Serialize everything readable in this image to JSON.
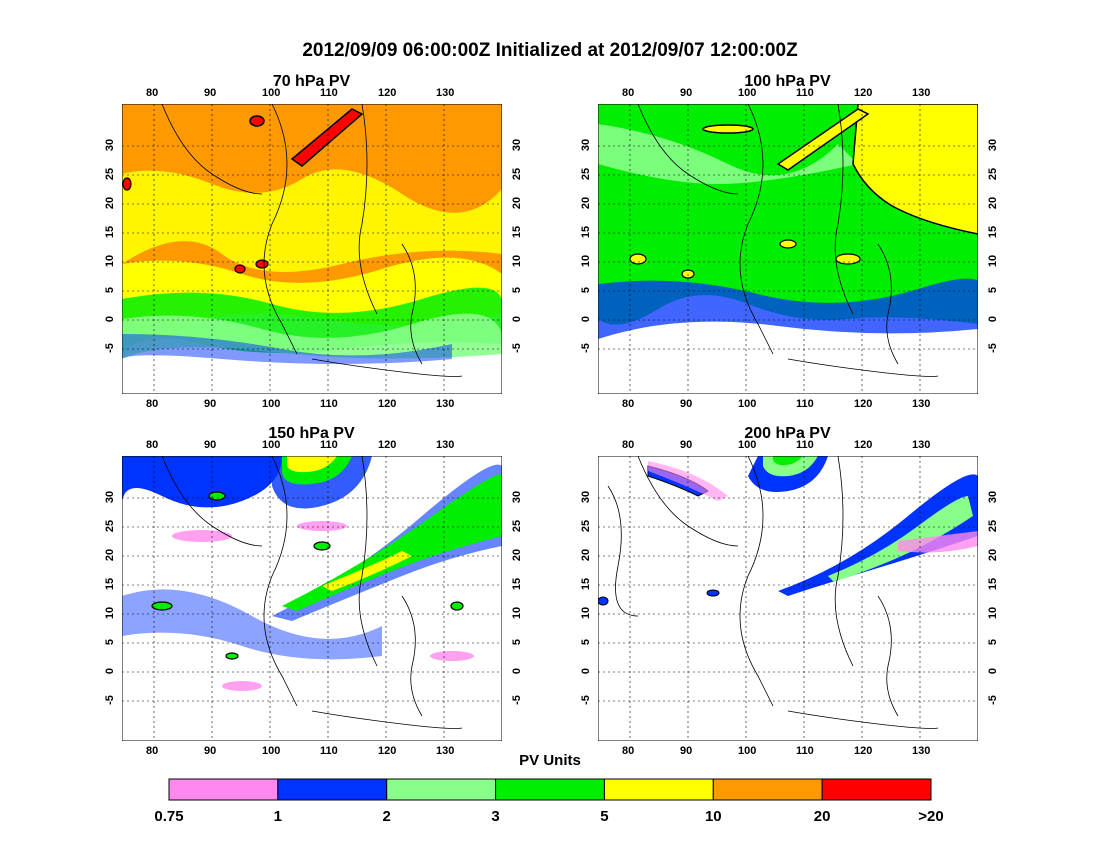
{
  "title": "2012/09/09 06:00:00Z Initialized at 2012/09/07 12:00:00Z",
  "panels": [
    {
      "title": "70 hPa PV"
    },
    {
      "title": "100 hPa PV"
    },
    {
      "title": "150 hPa PV"
    },
    {
      "title": "200 hPa PV"
    }
  ],
  "lon_ticks": [
    "80",
    "90",
    "100",
    "110",
    "120",
    "130"
  ],
  "lat_ticks": [
    "30",
    "25",
    "20",
    "15",
    "10",
    "5",
    "0",
    "-5"
  ],
  "colorbar": {
    "title": "PV Units",
    "labels": [
      "0.75",
      "1",
      "2",
      "3",
      "5",
      "10",
      "20",
      ">20"
    ],
    "colors": [
      "#ff88ee",
      "#0033ff",
      "#88ff88",
      "#00ee00",
      "#ffff00",
      "#ff9900",
      "#ff0000"
    ]
  }
}
